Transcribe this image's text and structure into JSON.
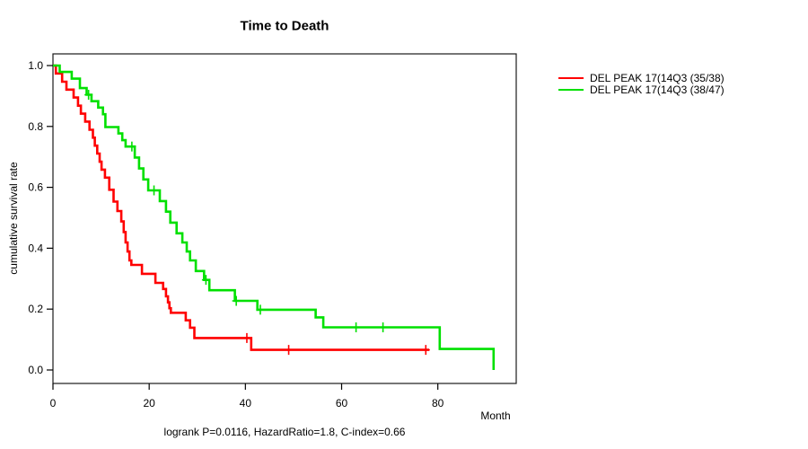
{
  "window": {
    "background": "#ffffff"
  },
  "chart_data": {
    "type": "line",
    "subtype": "kaplan-meier-step-survival",
    "title": "Time to Death",
    "xlabel": "Month",
    "ylabel": "cumulative survival rate",
    "annotation": "logrank P=0.0116, HazardRatio=1.8, C-index=0.66",
    "x_ticks": [
      0,
      20,
      40,
      60,
      80
    ],
    "y_ticks": [
      0.0,
      0.2,
      0.4,
      0.6,
      0.8,
      1.0
    ],
    "xlim": [
      0,
      96
    ],
    "ylim": [
      0,
      1.04
    ],
    "grid": false,
    "legend": {
      "position": "right-outside",
      "entries": [
        {
          "label": "DEL PEAK 17(14Q3 (35/38)",
          "color": "#ff0000"
        },
        {
          "label": "DEL PEAK 17(14Q3 (38/47)",
          "color": "#00e000"
        }
      ]
    },
    "series": [
      {
        "name": "DEL PEAK 17(14Q3 (35/38)",
        "color": "#ff0000",
        "steps": [
          [
            0,
            1.0
          ],
          [
            0.6,
            0.974
          ],
          [
            1.9,
            0.947
          ],
          [
            2.8,
            0.921
          ],
          [
            4.3,
            0.895
          ],
          [
            5.2,
            0.868
          ],
          [
            5.8,
            0.842
          ],
          [
            6.7,
            0.816
          ],
          [
            7.6,
            0.789
          ],
          [
            8.3,
            0.763
          ],
          [
            8.7,
            0.737
          ],
          [
            9.2,
            0.711
          ],
          [
            9.7,
            0.684
          ],
          [
            10.1,
            0.658
          ],
          [
            10.8,
            0.632
          ],
          [
            11.7,
            0.592
          ],
          [
            12.6,
            0.553
          ],
          [
            13.4,
            0.522
          ],
          [
            14.2,
            0.488
          ],
          [
            14.7,
            0.453
          ],
          [
            15.1,
            0.419
          ],
          [
            15.5,
            0.389
          ],
          [
            15.9,
            0.36
          ],
          [
            16.3,
            0.345
          ],
          [
            18.5,
            0.316
          ],
          [
            21.3,
            0.286
          ],
          [
            22.9,
            0.266
          ],
          [
            23.5,
            0.242
          ],
          [
            23.9,
            0.222
          ],
          [
            24.2,
            0.203
          ],
          [
            24.5,
            0.188
          ],
          [
            27.6,
            0.163
          ],
          [
            28.5,
            0.139
          ],
          [
            29.4,
            0.105
          ],
          [
            41.2,
            0.066
          ],
          [
            78.2,
            0.066
          ]
        ],
        "censors": [
          [
            40.3,
            0.105
          ],
          [
            49.0,
            0.066
          ],
          [
            77.5,
            0.066
          ]
        ]
      },
      {
        "name": "DEL PEAK 17(14Q3 (38/47)",
        "color": "#00e000",
        "steps": [
          [
            0,
            1.0
          ],
          [
            1.4,
            0.979
          ],
          [
            3.9,
            0.957
          ],
          [
            5.6,
            0.926
          ],
          [
            7.0,
            0.904
          ],
          [
            8.0,
            0.883
          ],
          [
            9.4,
            0.862
          ],
          [
            10.4,
            0.84
          ],
          [
            10.9,
            0.798
          ],
          [
            13.6,
            0.777
          ],
          [
            14.4,
            0.755
          ],
          [
            15.1,
            0.734
          ],
          [
            17.0,
            0.698
          ],
          [
            17.9,
            0.662
          ],
          [
            18.8,
            0.626
          ],
          [
            19.8,
            0.59
          ],
          [
            22.2,
            0.555
          ],
          [
            23.5,
            0.52
          ],
          [
            24.4,
            0.484
          ],
          [
            25.7,
            0.449
          ],
          [
            26.9,
            0.419
          ],
          [
            27.8,
            0.389
          ],
          [
            28.5,
            0.36
          ],
          [
            29.7,
            0.325
          ],
          [
            31.4,
            0.296
          ],
          [
            32.5,
            0.262
          ],
          [
            37.8,
            0.227
          ],
          [
            42.5,
            0.198
          ],
          [
            54.6,
            0.173
          ],
          [
            56.2,
            0.14
          ],
          [
            80.4,
            0.069
          ],
          [
            91.6,
            0.0
          ]
        ],
        "censors": [
          [
            7.4,
            0.904
          ],
          [
            16.4,
            0.734
          ],
          [
            21.0,
            0.59
          ],
          [
            31.8,
            0.296
          ],
          [
            38.1,
            0.227
          ],
          [
            43.1,
            0.198
          ],
          [
            63.0,
            0.14
          ],
          [
            68.6,
            0.14
          ]
        ]
      }
    ]
  }
}
